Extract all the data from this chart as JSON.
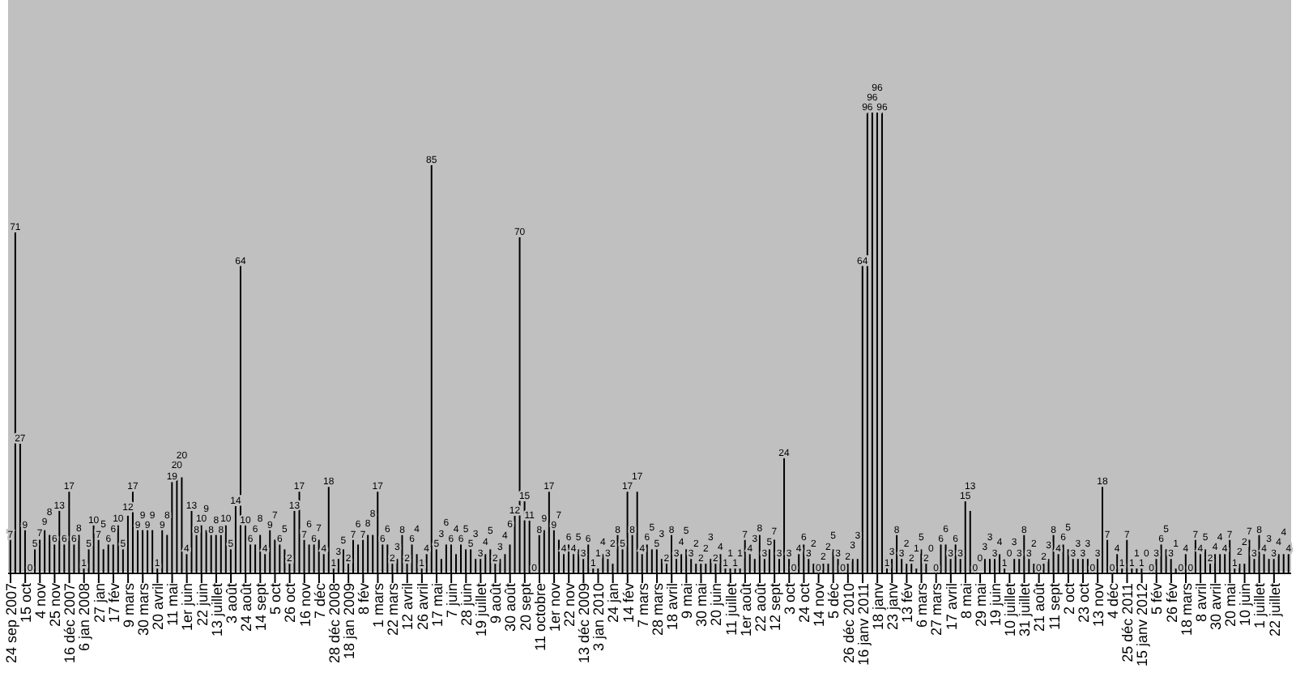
{
  "chart_data": {
    "type": "bar",
    "data_labels": true,
    "color": "#000000",
    "categories": [
      "24 sep 2007",
      null,
      null,
      "15 oct",
      null,
      null,
      "4 nov",
      null,
      null,
      "25 nov",
      null,
      null,
      "16 déc 2007",
      null,
      null,
      "6 jan 2008",
      null,
      null,
      "27 jan",
      null,
      null,
      "17 fév",
      null,
      null,
      "9 mars",
      null,
      null,
      "30 mars",
      null,
      null,
      "20 avril",
      null,
      null,
      "11 mai",
      null,
      null,
      "1er juin",
      null,
      null,
      "22 juin",
      null,
      null,
      "13 juillet",
      null,
      null,
      "3 août",
      null,
      null,
      "24 août",
      null,
      null,
      "14 sept",
      null,
      null,
      "5 oct",
      null,
      null,
      "26 oct",
      null,
      null,
      "16 nov",
      null,
      null,
      "7 déc",
      null,
      null,
      "28 déc 2008",
      null,
      null,
      "18 jan 2009",
      null,
      null,
      "8 fév",
      null,
      null,
      "1 mars",
      null,
      null,
      "22 mars",
      null,
      null,
      "12 avril",
      null,
      null,
      "26 avril",
      null,
      null,
      "17 mai",
      null,
      null,
      "7 juin",
      null,
      null,
      "28 juin",
      null,
      null,
      "19 juillet",
      null,
      null,
      "9 août",
      null,
      null,
      "30 août",
      null,
      null,
      "20 sept",
      null,
      null,
      "11 octobre",
      null,
      null,
      "1er nov",
      null,
      null,
      "22 nov",
      null,
      null,
      "13 déc 2009",
      null,
      null,
      "3 jan 2010",
      null,
      null,
      "24 jan",
      null,
      null,
      "14 fév",
      null,
      null,
      "7 mars",
      null,
      null,
      "28 mars",
      null,
      null,
      "18 avril",
      null,
      null,
      "9 mai",
      null,
      null,
      "30 mai",
      null,
      null,
      "20 juin",
      null,
      null,
      "11 juillet",
      null,
      null,
      "1er août",
      null,
      null,
      "22 août",
      null,
      null,
      "12 sept",
      null,
      null,
      "3 oct",
      null,
      null,
      "24 oct",
      null,
      null,
      "14 nov",
      null,
      null,
      "5 déc",
      null,
      null,
      "26 déc 2010",
      null,
      null,
      "16 janv 2011",
      null,
      null,
      "18 janv",
      null,
      null,
      "23 janv",
      null,
      null,
      "13 fév",
      null,
      null,
      "6 mars",
      null,
      null,
      "27 mars",
      null,
      null,
      "17 avril",
      null,
      null,
      "8 mai",
      null,
      null,
      "29 mai",
      null,
      null,
      "19 juin",
      null,
      null,
      "10 juillet",
      null,
      null,
      "31 juillet",
      null,
      null,
      "21 août",
      null,
      null,
      "11 sept",
      null,
      null,
      "2 oct",
      null,
      null,
      "23 oct",
      null,
      null,
      "13 nov",
      null,
      null,
      "4 déc",
      null,
      null,
      "25 déc 2011",
      null,
      null,
      "15 janv 2012",
      null,
      null,
      "5 fév",
      null,
      null,
      "26 fév",
      null,
      null,
      "18 mars",
      null,
      null,
      "8 avril",
      null,
      null,
      "30 avril",
      null,
      null,
      "20 mai",
      null,
      null,
      "10 juin",
      null,
      null,
      "1 juillet",
      null,
      null,
      "22 juillet",
      null,
      null,
      null
    ],
    "values": [
      7,
      71,
      27,
      9,
      0,
      5,
      7,
      9,
      8,
      6,
      13,
      6,
      17,
      6,
      8,
      1,
      5,
      10,
      7,
      5,
      6,
      6,
      10,
      5,
      12,
      17,
      9,
      9,
      9,
      9,
      1,
      9,
      8,
      19,
      20,
      20,
      4,
      13,
      8,
      10,
      9,
      8,
      8,
      8,
      10,
      5,
      14,
      64,
      10,
      6,
      6,
      8,
      4,
      9,
      7,
      6,
      5,
      2,
      13,
      17,
      7,
      6,
      6,
      7,
      4,
      18,
      1,
      3,
      5,
      2,
      7,
      6,
      7,
      8,
      8,
      17,
      6,
      6,
      2,
      3,
      8,
      2,
      6,
      4,
      1,
      4,
      85,
      5,
      3,
      6,
      6,
      4,
      6,
      5,
      5,
      3,
      3,
      4,
      5,
      2,
      3,
      4,
      6,
      12,
      70,
      15,
      11,
      0,
      8,
      9,
      17,
      9,
      7,
      4,
      6,
      4,
      5,
      3,
      6,
      1,
      1,
      4,
      3,
      2,
      8,
      5,
      17,
      8,
      17,
      4,
      6,
      5,
      5,
      3,
      2,
      8,
      3,
      4,
      5,
      3,
      2,
      2,
      2,
      3,
      2,
      4,
      1,
      1,
      1,
      1,
      7,
      4,
      3,
      8,
      3,
      5,
      7,
      3,
      24,
      3,
      0,
      4,
      6,
      3,
      2,
      0,
      2,
      2,
      5,
      3,
      0,
      2,
      3,
      3,
      64,
      96,
      96,
      96,
      96,
      1,
      3,
      8,
      3,
      2,
      2,
      1,
      5,
      2,
      0,
      0,
      6,
      6,
      3,
      6,
      3,
      15,
      13,
      0,
      0,
      3,
      3,
      3,
      4,
      1,
      0,
      3,
      3,
      8,
      3,
      2,
      0,
      2,
      3,
      8,
      4,
      6,
      5,
      3,
      3,
      3,
      3,
      0,
      3,
      18,
      7,
      0,
      4,
      1,
      7,
      1,
      1,
      1,
      0,
      0,
      3,
      6,
      5,
      3,
      1,
      0,
      4,
      0,
      7,
      4,
      5,
      2,
      4,
      4,
      4,
      7,
      1,
      2,
      2,
      7,
      3,
      8,
      4,
      3,
      3,
      4,
      4,
      4
    ]
  }
}
